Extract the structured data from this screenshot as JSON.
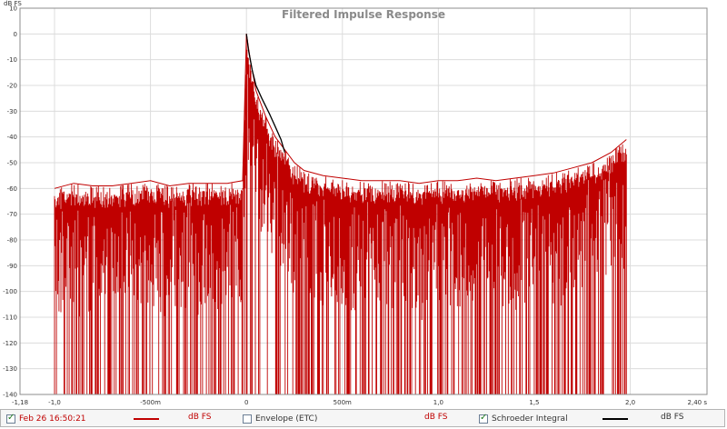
{
  "chart_data": {
    "type": "line",
    "title": "Filtered Impulse Response",
    "ylabel": "dB FS",
    "ylim": [
      -140,
      10
    ],
    "xlim": [
      -1.18,
      2.4
    ],
    "yticks": [
      10,
      0,
      -10,
      -20,
      -30,
      -40,
      -50,
      -60,
      -70,
      -80,
      -90,
      -100,
      -110,
      -120,
      -130,
      -140
    ],
    "ytick_labels": [
      "10",
      "0",
      "-10",
      "-20",
      "-30",
      "-40",
      "-50",
      "-60",
      "-70",
      "-80",
      "-90",
      "-100",
      "-110",
      "-120",
      "-130",
      "-140"
    ],
    "xticks": [
      -1.18,
      -1.0,
      -0.5,
      0,
      0.5,
      1.0,
      1.5,
      2.0,
      2.4
    ],
    "xtick_labels": [
      "-1,18",
      "-1,0",
      "-500m",
      "0",
      "500m",
      "1,0",
      "1,5",
      "2,0",
      "2,40 s"
    ],
    "grid": true,
    "series": [
      {
        "name": "Feb 26 16:50:21",
        "unit": "dB FS",
        "color": "#c00000",
        "envelope": {
          "x": [
            -1.0,
            -0.9,
            -0.8,
            -0.7,
            -0.6,
            -0.5,
            -0.4,
            -0.3,
            -0.2,
            -0.1,
            -0.02,
            0.0,
            0.02,
            0.05,
            0.1,
            0.15,
            0.2,
            0.25,
            0.3,
            0.4,
            0.5,
            0.6,
            0.7,
            0.8,
            0.9,
            1.0,
            1.1,
            1.2,
            1.3,
            1.4,
            1.5,
            1.6,
            1.7,
            1.8,
            1.9,
            1.98
          ],
          "y": [
            -60,
            -58,
            -59,
            -59,
            -58,
            -57,
            -59,
            -58,
            -58,
            -58,
            -57,
            0,
            -10,
            -22,
            -32,
            -40,
            -45,
            -50,
            -53,
            -55,
            -56,
            -57,
            -57,
            -57,
            -58,
            -57,
            -57,
            -56,
            -57,
            -56,
            -55,
            -54,
            -52,
            -50,
            -46,
            -41
          ]
        }
      },
      {
        "name": "Schroeder Integral",
        "unit": "dB FS",
        "color": "#000000",
        "x": [
          0.0,
          0.01,
          0.03,
          0.05,
          0.08,
          0.1,
          0.12,
          0.15,
          0.18,
          0.2
        ],
        "y": [
          0,
          -6,
          -14,
          -20,
          -25,
          -28,
          -31,
          -36,
          -41,
          -46
        ]
      }
    ]
  },
  "legend": [
    {
      "label": "Feb 26 16:50:21",
      "unit": "dB FS",
      "checked": true,
      "color": "#c00000"
    },
    {
      "label": "Envelope (ETC)",
      "unit": "dB FS",
      "checked": false,
      "color": "#c00000"
    },
    {
      "label": "Schroeder Integral",
      "unit": "dB FS",
      "checked": true,
      "color": "#000000"
    }
  ]
}
